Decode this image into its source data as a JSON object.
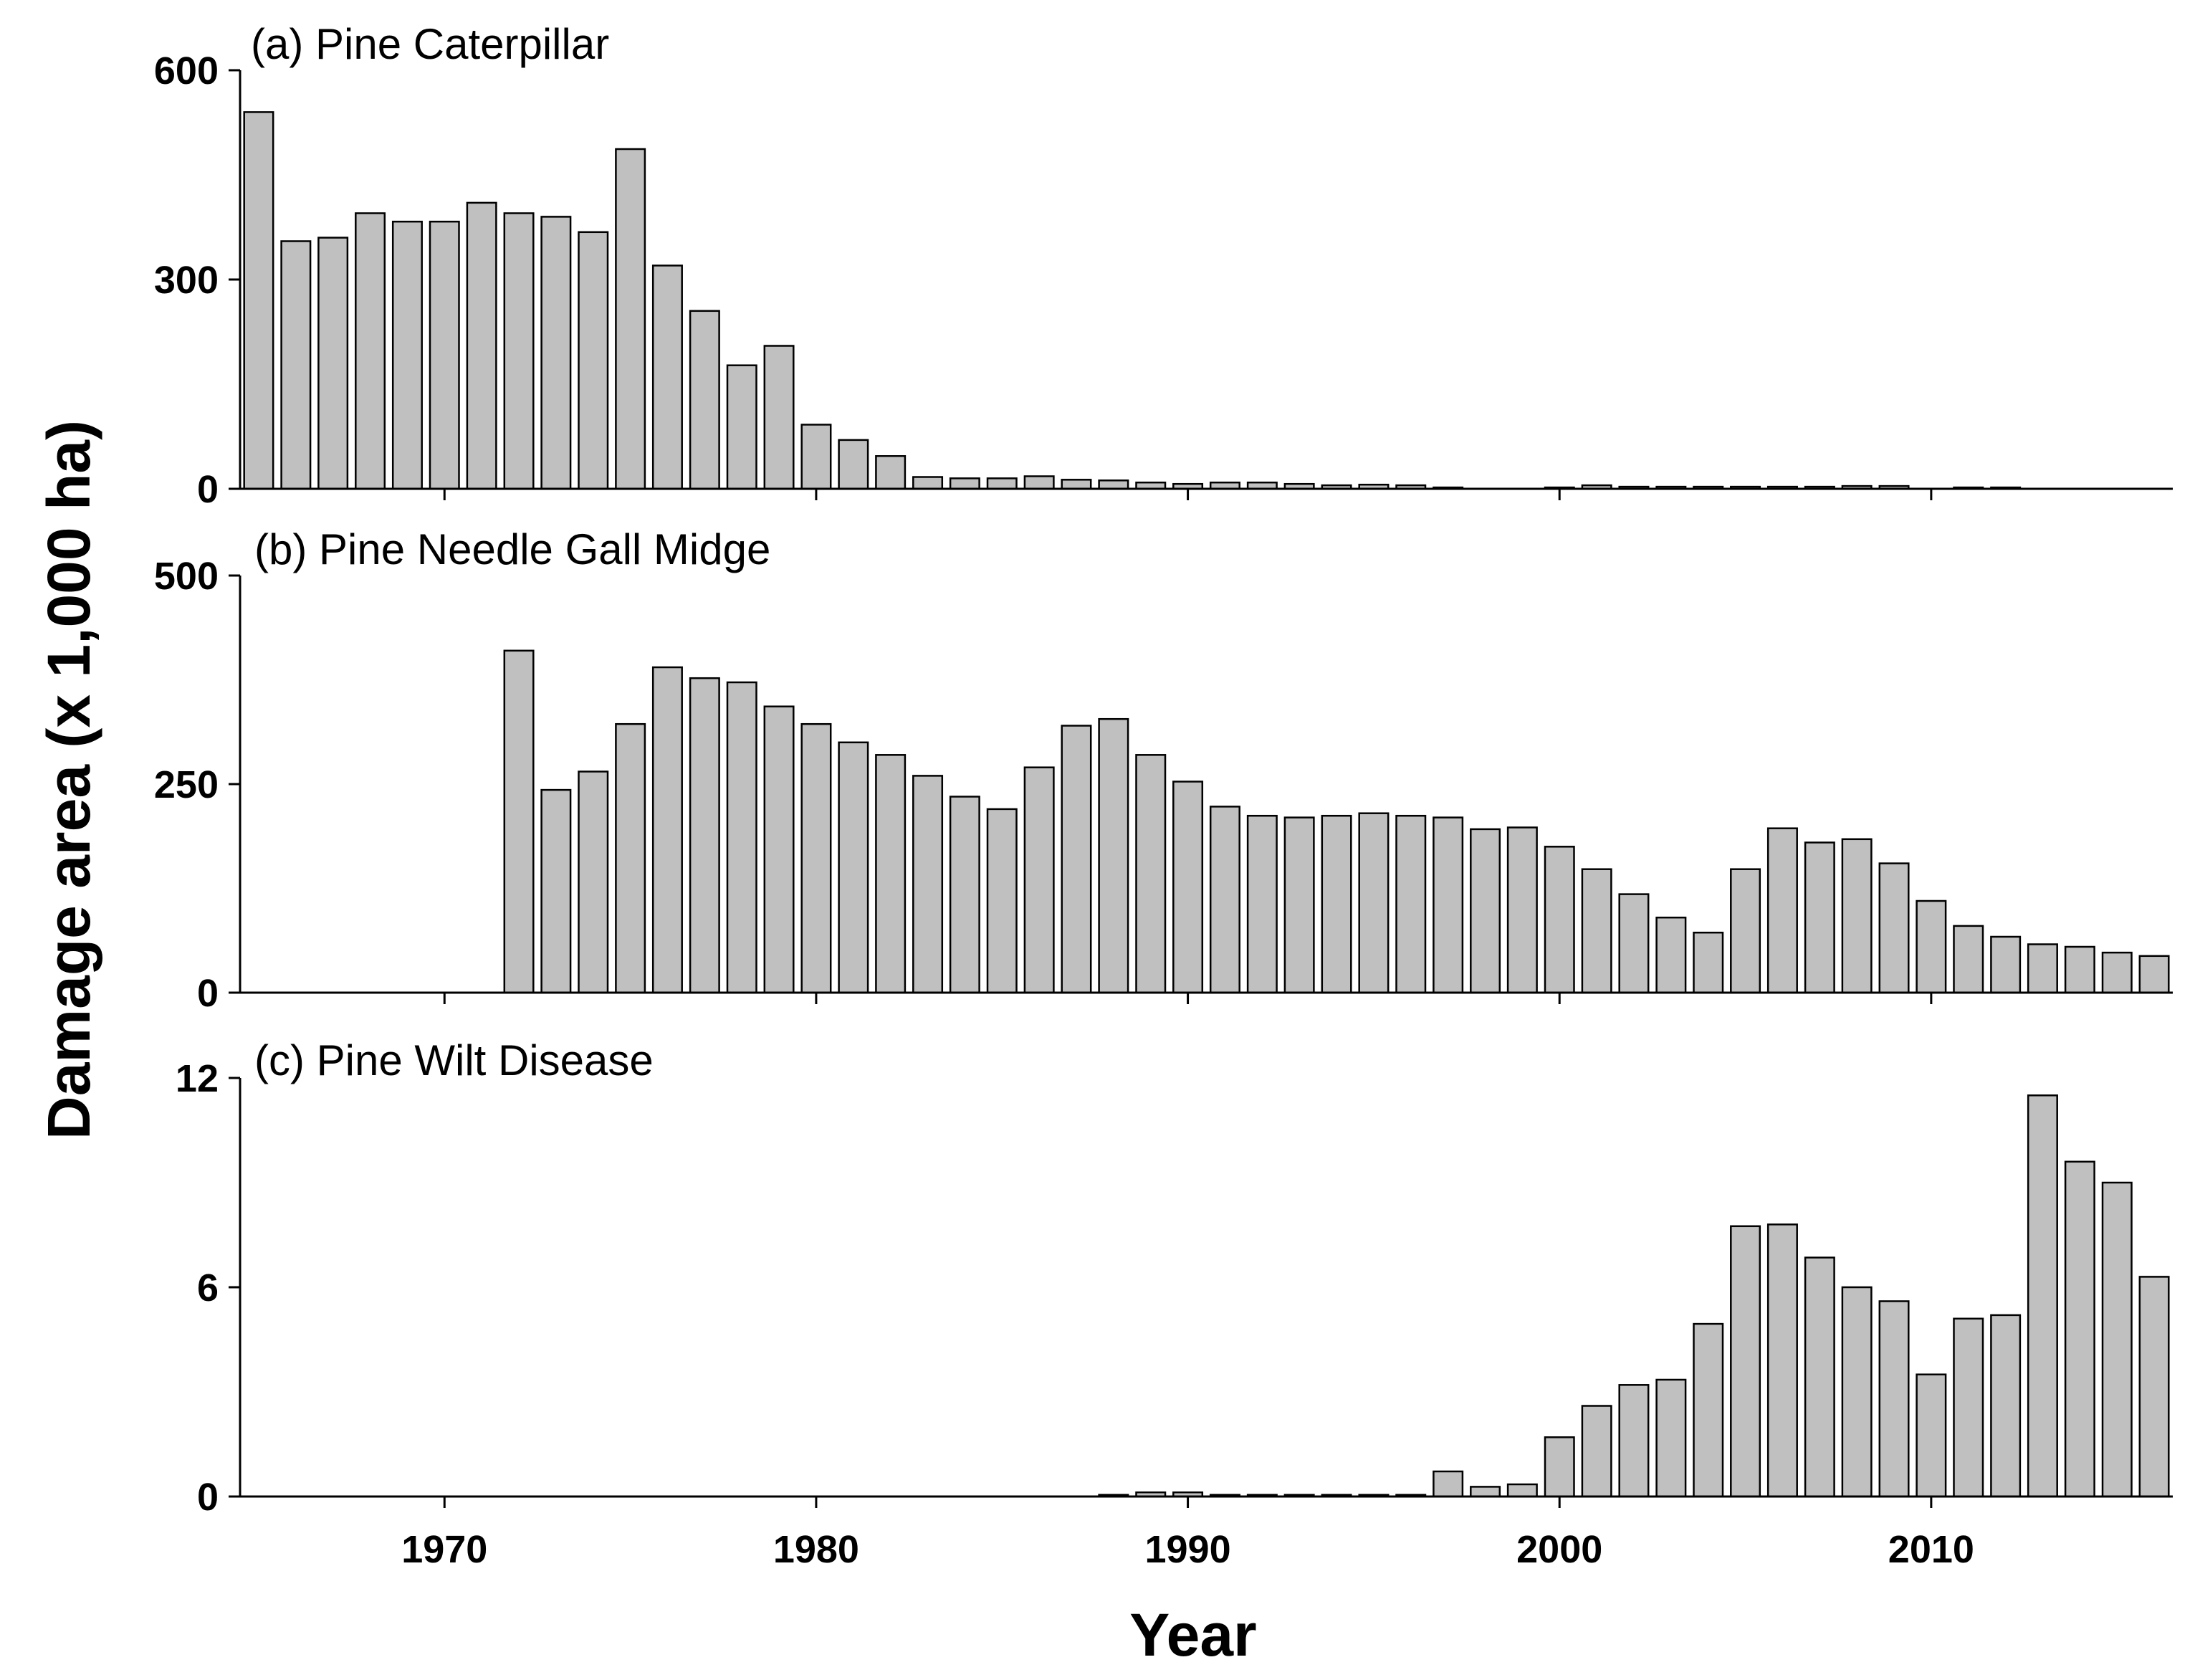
{
  "figure": {
    "ylabel": "Damage area (x 1,000 ha)",
    "xlabel": "Year",
    "bar_color": "#c0c0c0",
    "x_ticks": [
      1970,
      1980,
      1990,
      2000,
      2010
    ]
  },
  "chart_data": [
    {
      "type": "bar",
      "title": "(a) Pine Caterpillar",
      "ylim": [
        0,
        600
      ],
      "yticks": [
        0,
        300,
        600
      ],
      "x": [
        1965,
        1966,
        1967,
        1968,
        1969,
        1970,
        1971,
        1972,
        1973,
        1974,
        1975,
        1976,
        1977,
        1978,
        1979,
        1980,
        1981,
        1982,
        1983,
        1984,
        1985,
        1986,
        1987,
        1988,
        1989,
        1990,
        1991,
        1992,
        1993,
        1994,
        1995,
        1996,
        1997,
        1998,
        1999,
        2000,
        2001,
        2002,
        2003,
        2004,
        2005,
        2006,
        2007,
        2008,
        2009,
        2010,
        2011,
        2012,
        2013,
        2014,
        2015,
        2016
      ],
      "values": [
        540,
        355,
        360,
        395,
        383,
        383,
        410,
        395,
        390,
        368,
        487,
        320,
        255,
        177,
        205,
        92,
        70,
        47,
        17,
        15,
        15,
        18,
        13,
        12,
        9,
        7,
        9,
        9,
        7,
        5,
        6,
        5,
        2,
        0,
        0,
        2,
        5,
        3,
        3,
        3,
        3,
        3,
        3,
        4,
        4,
        0,
        2,
        2,
        0,
        0,
        0,
        0
      ]
    },
    {
      "type": "bar",
      "title": "(b) Pine Needle Gall Midge",
      "ylim": [
        0,
        500
      ],
      "yticks": [
        0,
        250,
        500
      ],
      "x": [
        1965,
        1966,
        1967,
        1968,
        1969,
        1970,
        1971,
        1972,
        1973,
        1974,
        1975,
        1976,
        1977,
        1978,
        1979,
        1980,
        1981,
        1982,
        1983,
        1984,
        1985,
        1986,
        1987,
        1988,
        1989,
        1990,
        1991,
        1992,
        1993,
        1994,
        1995,
        1996,
        1997,
        1998,
        1999,
        2000,
        2001,
        2002,
        2003,
        2004,
        2005,
        2006,
        2007,
        2008,
        2009,
        2010,
        2011,
        2012,
        2013,
        2014,
        2015,
        2016
      ],
      "values": [
        0,
        0,
        0,
        0,
        0,
        0,
        0,
        410,
        243,
        265,
        322,
        390,
        377,
        372,
        343,
        322,
        300,
        285,
        260,
        235,
        220,
        270,
        320,
        328,
        285,
        253,
        223,
        212,
        210,
        212,
        215,
        212,
        210,
        196,
        198,
        175,
        148,
        118,
        90,
        72,
        148,
        197,
        180,
        184,
        155,
        110,
        80,
        67,
        58,
        55,
        48,
        44
      ]
    },
    {
      "type": "bar",
      "title": "(c) Pine Wilt Disease",
      "ylim": [
        0,
        12
      ],
      "yticks": [
        0,
        6,
        12
      ],
      "x": [
        1965,
        1966,
        1967,
        1968,
        1969,
        1970,
        1971,
        1972,
        1973,
        1974,
        1975,
        1976,
        1977,
        1978,
        1979,
        1980,
        1981,
        1982,
        1983,
        1984,
        1985,
        1986,
        1987,
        1988,
        1989,
        1990,
        1991,
        1992,
        1993,
        1994,
        1995,
        1996,
        1997,
        1998,
        1999,
        2000,
        2001,
        2002,
        2003,
        2004,
        2005,
        2006,
        2007,
        2008,
        2009,
        2010,
        2011,
        2012,
        2013,
        2014,
        2015,
        2016
      ],
      "values": [
        0,
        0,
        0,
        0,
        0,
        0,
        0,
        0,
        0,
        0,
        0,
        0,
        0,
        0,
        0,
        0,
        0,
        0,
        0,
        0,
        0,
        0,
        0,
        0.05,
        0.12,
        0.12,
        0.05,
        0.05,
        0.05,
        0.05,
        0.05,
        0.05,
        0.72,
        0.28,
        0.35,
        1.7,
        2.6,
        3.2,
        3.35,
        4.95,
        7.75,
        7.8,
        6.85,
        6.0,
        5.6,
        3.5,
        5.1,
        5.2,
        11.5,
        9.6,
        9.0,
        6.3
      ]
    }
  ]
}
